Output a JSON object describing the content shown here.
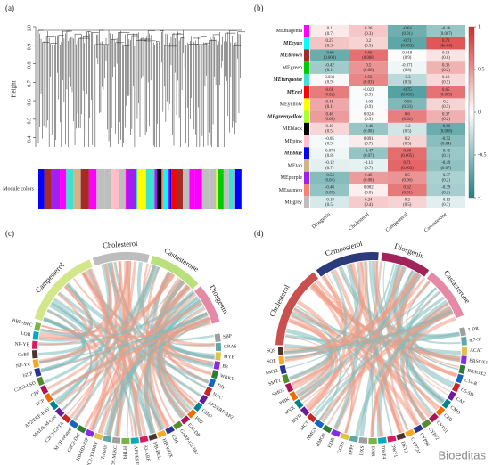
{
  "panel_a": {
    "label": "(a)",
    "y_label": "Height",
    "ylim": [
      0.35,
      1.0
    ],
    "yticks": [
      {
        "value": 0.4,
        "label": "0.4"
      },
      {
        "value": 0.5,
        "label": "0.5"
      },
      {
        "value": 0.6,
        "label": "0.6"
      },
      {
        "value": 0.7,
        "label": "0.7"
      },
      {
        "value": 0.8,
        "label": "0.8"
      },
      {
        "value": 0.9,
        "label": "0.9"
      },
      {
        "value": 1,
        "label": "1.0"
      }
    ],
    "bar_label": "Module colors"
  },
  "panel_b": {
    "label": "(b)",
    "rows": [
      "MEmagenta",
      "MEcyan",
      "MEbrown",
      "MEgreen",
      "MEturquoise",
      "MEred",
      "MEyellow",
      "MEgreenyellow",
      "MEblack",
      "MEpink",
      "MEblue",
      "MEtan",
      "MEpurple",
      "MEsalmon",
      "MEgrey"
    ],
    "row_colors": [
      "#ff00ff",
      "#00ffff",
      "#a52a2a",
      "#00cc00",
      "#40e0d0",
      "#ff0000",
      "#ffff00",
      "#adff2f",
      "#000000",
      "#ffc0cb",
      "#0000ff",
      "#d2b48c",
      "#a020f0",
      "#fa8072",
      "#bebebe"
    ],
    "highlighted": [
      false,
      true,
      true,
      false,
      true,
      true,
      false,
      true,
      false,
      false,
      true,
      false,
      false,
      false,
      false
    ],
    "columns": [
      "Diosgenin",
      "Cholesterol",
      "Campesterol",
      "Castasterone"
    ],
    "values": [
      [
        0.1,
        0.26,
        -0.64,
        -0.46
      ],
      [
        0.27,
        0.2,
        -0.71,
        0.78
      ],
      [
        -0.66,
        0.66,
        0.019,
        0.13
      ],
      [
        -0.42,
        0.5,
        -0.071,
        0.36
      ],
      [
        0.033,
        0.56,
        -0.3,
        0.18
      ],
      [
        0.61,
        -0.023,
        -0.75,
        0.65
      ],
      [
        0.41,
        -0.03,
        -0.56,
        0.2
      ],
      [
        0.46,
        0.024,
        0.6,
        0.37
      ],
      [
        0.19,
        -0.46,
        -0.2,
        -0.66
      ],
      [
        -0.05,
        0.091,
        0.2,
        -0.52
      ],
      [
        -0.074,
        -0.47,
        0.68,
        -0.45
      ],
      [
        -0.12,
        -0.11,
        0.71,
        -0.49
      ],
      [
        -0.54,
        0.46,
        0.5,
        -0.37
      ],
      [
        -0.48,
        0.082,
        0.62,
        -0.39
      ],
      [
        -0.18,
        0.24,
        0.2,
        -0.13
      ]
    ],
    "p_labels": [
      [
        "(0.7)",
        "(0.3)",
        "(0.01)",
        "(0.007)"
      ],
      [
        "(0.3)",
        "(0.5)",
        "(0.003)",
        "(4e-04)"
      ],
      [
        "(0.008)",
        "(0.008)",
        "(0.9)",
        "(0.6)"
      ],
      [
        "(0.1)",
        "(0.06)",
        "(0.8)",
        "(0.2)"
      ],
      [
        "(0.9)",
        "(0.03)",
        "(0.3)",
        "(0.5)"
      ],
      [
        "(0.02)",
        "(0.9)",
        "(0.001)",
        "(0.009)"
      ],
      [
        "(0.1)",
        "(0.9)",
        "(0.03)",
        "(0.5)"
      ],
      [
        "(0.08)",
        "(0.9)",
        "(0.02)",
        "(0.2)"
      ],
      [
        "(0.5)",
        "(0.08)",
        "(0.5)",
        "(0.008)"
      ],
      [
        "(0.9)",
        "(0.7)",
        "(0.5)",
        "(0.04)"
      ],
      [
        "(0.8)",
        "(0.07)",
        "(0.005)",
        "(0.1)"
      ],
      [
        "(0.7)",
        "(0.7)",
        "(0.003)",
        "(0.07)"
      ],
      [
        "(0.04)",
        "(0.08)",
        "(0.06)",
        "(0.2)"
      ],
      [
        "(0.07)",
        "(0.8)",
        "(0.01)",
        "(0.2)"
      ],
      [
        "(0.5)",
        "(0.4)",
        "(0.5)",
        "(0.7)"
      ]
    ],
    "colorbar_lim": [
      -1,
      1
    ],
    "colorbar_ticks": [
      1,
      0.5,
      0,
      -0.5,
      -1
    ]
  },
  "panel_c": {
    "label": "(c)",
    "traits": [
      "Campesterol",
      "Cholesterol",
      "Castasterone",
      "Diosgenin"
    ],
    "trait_colors": [
      "#d4e68a",
      "#bdbdbd",
      "#b9e07a",
      "#e58aa6"
    ],
    "genes": [
      "SBP",
      "GRAS",
      "MYB",
      "B3",
      "WRKY",
      "Tify",
      "NAC",
      "AP2/ERF-AP2",
      "C2H2",
      "HSF",
      "E2F-DP",
      "GARP-G2-like",
      "C3H",
      "HB-WOX",
      "HB-BEL",
      "B3-ARF",
      "AP2/ERF-ERF",
      "bHLH",
      "MADS-MIKC",
      "Trihelix",
      "C2C2-YABBY",
      "HB-HD-ZIP",
      "C2C2-Dof",
      "MYB-related",
      "C2C2-GATA",
      "MADS-M-type",
      "AP2/ERF-RAV",
      "TCP",
      "CPP",
      "C2C2-LSD",
      "bZIP",
      "NF-YC",
      "GeBP",
      "NF-YB",
      "LOB",
      "BBR-BPC"
    ]
  },
  "panel_d": {
    "label": "(d)",
    "traits": [
      "Cholesterol",
      "Campesterol",
      "Diosgenin",
      "Castasterone"
    ],
    "trait_colors": [
      "#c9504f",
      "#2b3a7a",
      "#a0245a",
      "#e58aa6"
    ],
    "genes": [
      "7-DR",
      "8,7-SI",
      "ACAT",
      "BRSOX1",
      "BRSOX2",
      "C14-R",
      "C5-SD",
      "CAS",
      "CMO",
      "CPD",
      "CYP51",
      "CYP72",
      "CYP90",
      "CYP724",
      "DET2",
      "DWF1",
      "DWF4",
      "DXR",
      "DXS",
      "FPPS",
      "GGPS",
      "HDR",
      "HMGR",
      "HMGS",
      "MCT",
      "MVD",
      "MVK",
      "PMK",
      "SMO1",
      "SMT1",
      "SMT2",
      "SQE",
      "SQS"
    ]
  },
  "watermark": "Bioeditas"
}
